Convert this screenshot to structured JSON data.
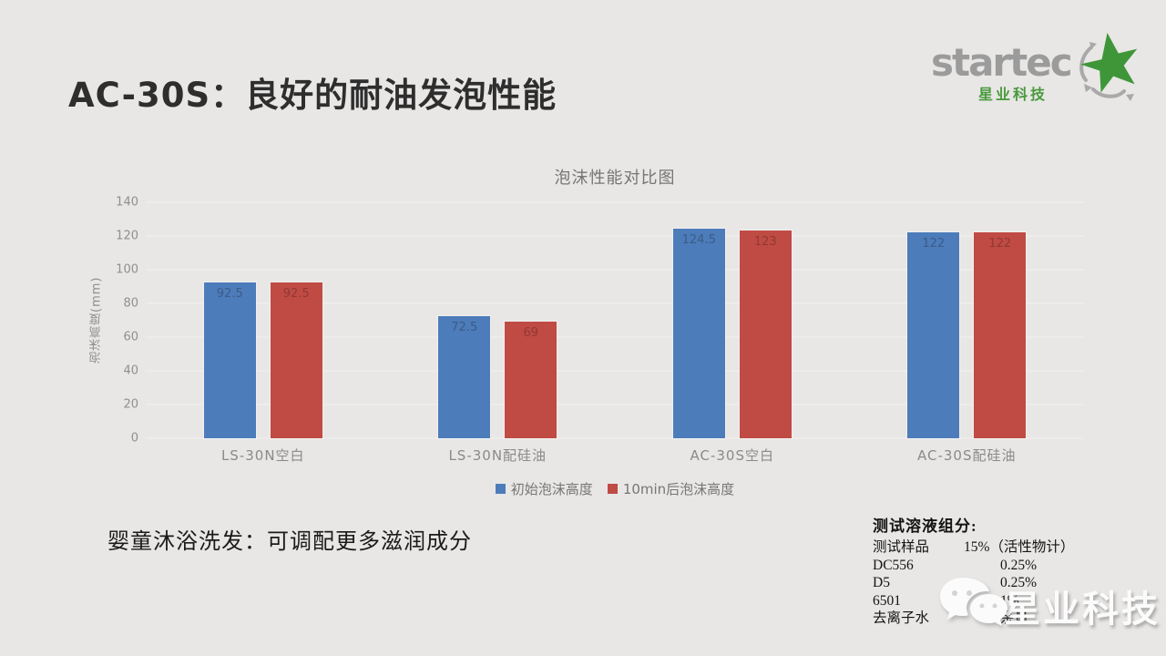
{
  "slide": {
    "title": "AC-30S：良好的耐油发泡性能",
    "note": "婴童沐浴洗发：可调配更多滋润成分"
  },
  "logo": {
    "brand": "startec",
    "brand_cn": "星业科技"
  },
  "watermark": {
    "text": "星业科技",
    "icon": "wechat-icon"
  },
  "solution": {
    "heading": "测试溶液组分:",
    "rows": [
      {
        "name": "测试样品",
        "value": "15%（活性物计）"
      },
      {
        "name": "DC556",
        "value": "0.25%"
      },
      {
        "name": "D5",
        "value": "0.25%"
      },
      {
        "name": "6501",
        "value": "1%"
      },
      {
        "name": "去离子水",
        "value": "余量"
      }
    ]
  },
  "chart_data": {
    "type": "bar",
    "title": "泡沫性能对比图",
    "categories": [
      "LS-30N空白",
      "LS-30N配硅油",
      "AC-30S空白",
      "AC-30S配硅油"
    ],
    "series": [
      {
        "name": "初始泡沫高度",
        "color": "#4d7cba",
        "label_color": "#3a5c88",
        "values": [
          92.5,
          72.5,
          124.5,
          122
        ]
      },
      {
        "name": "10min后泡沫高度",
        "color": "#c04a44",
        "label_color": "#8e3a33",
        "values": [
          92.5,
          69,
          123,
          122
        ]
      }
    ],
    "xlabel": "",
    "ylabel": "泡沫高度(mm)",
    "ylim": [
      0,
      140
    ],
    "ytick_step": 20,
    "grid": true,
    "legend_position": "bottom"
  }
}
